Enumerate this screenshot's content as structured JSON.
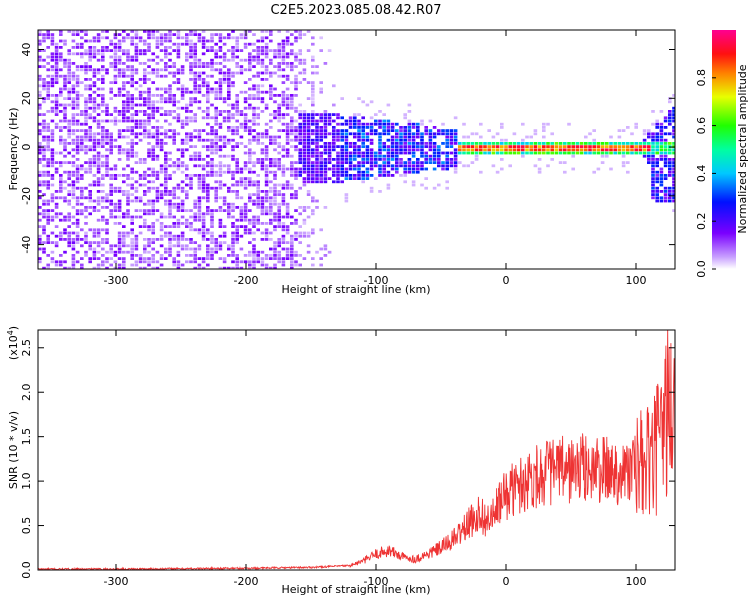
{
  "title": "C2E5.2023.085.08.42.R07",
  "chart_data": [
    {
      "type": "heatmap",
      "xlabel": "Height of straight line (km)",
      "ylabel": "Frequency (Hz)",
      "xlim": [
        -360,
        130
      ],
      "ylim": [
        -50,
        48
      ],
      "xticks": [
        -300,
        -200,
        -100,
        0,
        100
      ],
      "yticks": [
        -40,
        -20,
        0,
        20,
        40
      ],
      "colorbar": {
        "label": "Normalized spectral amplitude",
        "ticks": [
          0.0,
          0.2,
          0.4,
          0.6,
          0.8
        ],
        "range": [
          0,
          1
        ],
        "colormap": "hsv-rainbow (white-purple-blue-cyan-green-yellow-red-magenta)"
      },
      "description_regions": [
        {
          "x_range": [
            -360,
            -155
          ],
          "y_range": [
            -50,
            48
          ],
          "amplitude": 0.08,
          "pattern": "broadband scattered noise"
        },
        {
          "x_range": [
            -155,
            -40
          ],
          "y_range": [
            -10,
            8
          ],
          "amplitude": 0.25,
          "pattern": "band narrowing toward 0 Hz"
        },
        {
          "x_range": [
            -40,
            110
          ],
          "y_range": [
            -2,
            2
          ],
          "amplitude": 0.9,
          "pattern": "narrow line at 0 Hz"
        },
        {
          "x_range": [
            110,
            130
          ],
          "y_range": [
            -25,
            8
          ],
          "amplitude": 0.2,
          "pattern": "broadening at top"
        }
      ]
    },
    {
      "type": "line",
      "xlabel": "Height of straight line (km)",
      "ylabel": "SNR (10 * v/v)",
      "yscale_label": "(x10",
      "yscale_exponent": "4",
      "yscale_suffix": ")",
      "xlim": [
        -360,
        130
      ],
      "ylim": [
        0,
        2.7
      ],
      "xticks": [
        -300,
        -200,
        -100,
        0,
        100
      ],
      "yticks": [
        0.0,
        0.5,
        1.0,
        1.5,
        2.0,
        2.5
      ],
      "color": "#ee3333",
      "series": [
        {
          "x": [
            -360,
            -300,
            -200,
            -150,
            -120,
            -110,
            -100,
            -90,
            -80,
            -70,
            -60,
            -50,
            -40,
            -30,
            -20,
            -15,
            -10,
            -5,
            0,
            10,
            20,
            30,
            40,
            50,
            60,
            70,
            80,
            90,
            100,
            110,
            115,
            120,
            125,
            130
          ],
          "y": [
            0.01,
            0.01,
            0.02,
            0.03,
            0.05,
            0.1,
            0.18,
            0.22,
            0.15,
            0.12,
            0.18,
            0.25,
            0.35,
            0.5,
            0.65,
            0.55,
            0.6,
            0.75,
            0.85,
            0.95,
            1.05,
            1.1,
            1.12,
            1.12,
            1.15,
            1.12,
            1.12,
            1.1,
            1.15,
            1.2,
            1.3,
            1.5,
            1.9,
            1.6
          ]
        }
      ]
    }
  ]
}
